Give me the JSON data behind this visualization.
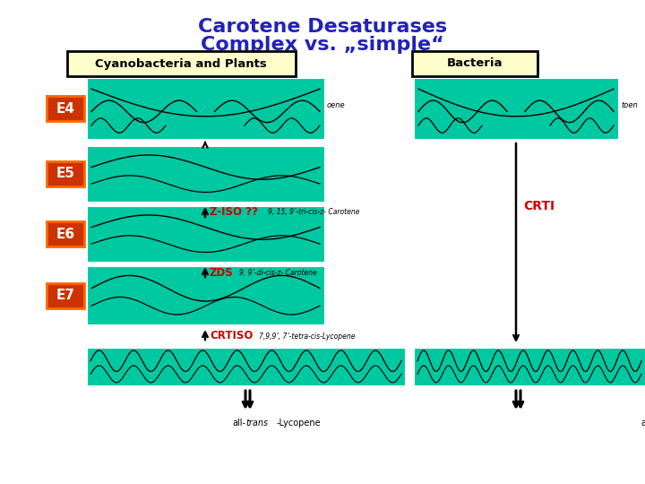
{
  "title_line1": "Carotene Desaturases",
  "title_line2": "Complex vs. „simple“",
  "title_color": "#2222BB",
  "title_fontsize": 16,
  "bg_color": "#FFFFFF",
  "teal_color": "#00C8A0",
  "label_box_color": "#FFFFCC",
  "label_box_edge": "#000000",
  "enzyme_box_color": "#CC3300",
  "enzyme_box_edge": "#FF6600",
  "enzyme_text_color": "#FFFFFF",
  "arrow_color": "#000000",
  "red_text_color": "#CC0000",
  "left_header": "Cyanobacteria and Plants",
  "right_header": "Bacteria",
  "enzymes": [
    "E4",
    "E5",
    "E6",
    "E7"
  ],
  "crti_label": "CRTI",
  "ziso_label": "Z-ISO ??",
  "zds_label": "ZDS",
  "crtiso_label": "CRTISO",
  "left_lycopene_label": "all-trans-Lycopene",
  "right_lycopene_label": "all-trans-Lycopin",
  "phytoene_label_left": "oene",
  "phytoene_label_right": "toen",
  "tri_cis_label": "9, 15, 9’-tri-cis-z- Carotene",
  "di_cis_label": "9, 9’-di-cis-z- Carotene",
  "tetra_cis_label": "7,9,9’, 7’-tetra-cis-Lycopene"
}
